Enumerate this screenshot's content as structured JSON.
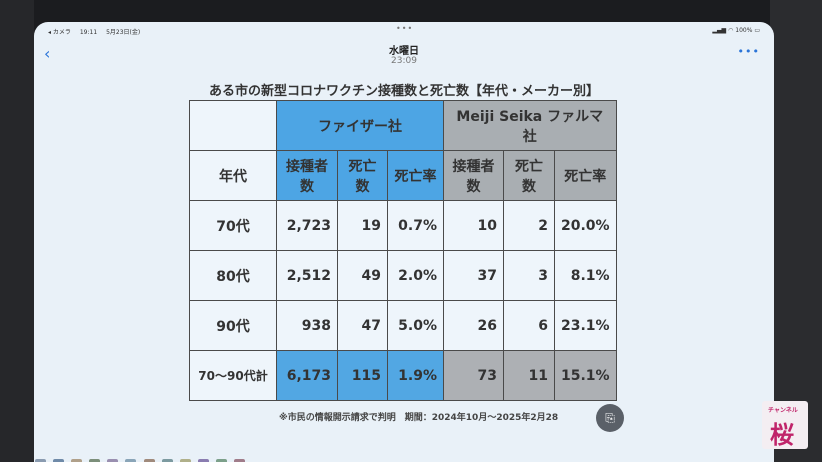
{
  "status_bar": {
    "back_app": "◂ カメラ",
    "time": "19:11",
    "date": "5月23日(金)",
    "dots": "•••",
    "signal": "100%",
    "battery_icon": "battery-icon"
  },
  "nav": {
    "back_label": "‹",
    "title": "水曜日",
    "time": "23:09",
    "more_label": "•••"
  },
  "document": {
    "title": "ある市の新型コロナワクチン接種数と死亡数【年代・メーカー別】",
    "table": {
      "pfizer_header": "ファイザー社",
      "meiji_header": "Meiji Seika ファルマ社",
      "col_headers": [
        "年代",
        "接種者数",
        "死亡数",
        "死亡率",
        "接種者数",
        "死亡数",
        "死亡率"
      ],
      "rows": [
        [
          "70代",
          "2,723",
          "19",
          "0.7%",
          "10",
          "2",
          "20.0%"
        ],
        [
          "80代",
          "2,512",
          "49",
          "2.0%",
          "37",
          "3",
          "8.1%"
        ],
        [
          "90代",
          "938",
          "47",
          "5.0%",
          "26",
          "6",
          "23.1%"
        ],
        [
          "70～90代計",
          "6,173",
          "115",
          "1.9%",
          "73",
          "11",
          "15.1%"
        ]
      ]
    },
    "note": "※市民の情報開示請求で判明　期間：2024年10月～2025年2月28",
    "round_button": "⎘"
  },
  "watermark": {
    "small_text": "チャンネル",
    "big_text": "桜"
  },
  "colors": {
    "pfizer": "#4da5e4",
    "meiji": "#a9aeb2",
    "screen_bg": "#e9f1f8",
    "accent": "#2a74d8"
  }
}
